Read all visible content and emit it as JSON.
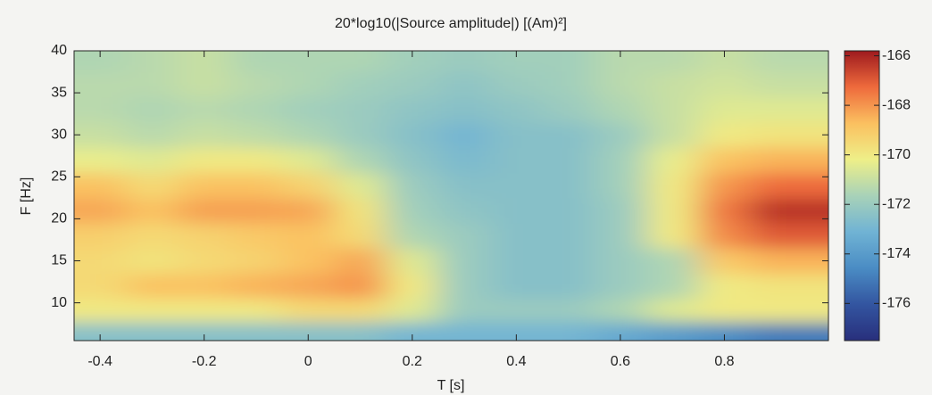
{
  "chart_data": {
    "type": "heatmap",
    "title": "20*log10(|Source amplitude|) [(Am)²]",
    "x_label": "T [s]",
    "y_label": "F [Hz]",
    "x": [
      -0.4,
      -0.3,
      -0.2,
      -0.1,
      0,
      0.1,
      0.2,
      0.3,
      0.4,
      0.5,
      0.6,
      0.7,
      0.8,
      0.9
    ],
    "y": [
      6.5,
      9,
      12,
      15,
      18,
      21,
      24,
      27,
      30,
      33,
      36,
      39
    ],
    "z": [
      [
        -172.5,
        -172.5,
        -172.5,
        -172.5,
        -172.5,
        -172.5,
        -173,
        -173,
        -173,
        -173,
        -173.5,
        -174,
        -174.5,
        -175
      ],
      [
        -170,
        -170,
        -170,
        -170,
        -169.5,
        -169.5,
        -170.5,
        -172,
        -172,
        -172,
        -171.5,
        -170.5,
        -170,
        -170
      ],
      [
        -169.5,
        -168.8,
        -168.8,
        -168.5,
        -168.3,
        -168,
        -170,
        -172,
        -172.5,
        -172.5,
        -172,
        -171.5,
        -170,
        -169.8
      ],
      [
        -169.5,
        -169.8,
        -169.5,
        -169.3,
        -168.8,
        -168.3,
        -170.5,
        -172,
        -172.5,
        -172.5,
        -172,
        -171.5,
        -169,
        -168.5
      ],
      [
        -169.2,
        -169.5,
        -169.3,
        -169,
        -168.8,
        -169.5,
        -171.5,
        -172,
        -172.5,
        -172.5,
        -172,
        -170,
        -167.8,
        -167
      ],
      [
        -168.3,
        -168.8,
        -168.2,
        -168.2,
        -168.3,
        -169.8,
        -171.8,
        -172.3,
        -172.5,
        -172.5,
        -172,
        -170,
        -167.5,
        -166.3
      ],
      [
        -168.8,
        -169.5,
        -168.8,
        -168.8,
        -169.3,
        -170.5,
        -172,
        -172.5,
        -172.5,
        -172.5,
        -171.8,
        -170,
        -168,
        -167.3
      ],
      [
        -170.3,
        -170.5,
        -170,
        -170,
        -170.5,
        -171.5,
        -172.3,
        -172.8,
        -172.5,
        -172.5,
        -171.8,
        -170.3,
        -168.8,
        -168.5
      ],
      [
        -171,
        -171.3,
        -171,
        -171.2,
        -171.5,
        -172,
        -172.5,
        -173,
        -172.5,
        -172.5,
        -172,
        -171,
        -170,
        -169.8
      ],
      [
        -171.3,
        -171.5,
        -171.3,
        -171.5,
        -171.8,
        -172,
        -172.3,
        -172.5,
        -172.3,
        -172,
        -171.5,
        -171,
        -170.5,
        -170.5
      ],
      [
        -171.3,
        -171.3,
        -171,
        -171.3,
        -171.5,
        -171.8,
        -172,
        -172.3,
        -172,
        -171.8,
        -171.3,
        -171,
        -170.8,
        -171
      ],
      [
        -171.5,
        -171.3,
        -171,
        -171.5,
        -171.5,
        -171.5,
        -171.8,
        -172,
        -171.8,
        -171.8,
        -171.3,
        -171.3,
        -171,
        -171.3
      ]
    ],
    "xlim": [
      -0.45,
      1.0
    ],
    "ylim": [
      5.5,
      40
    ],
    "xticks": [
      -0.4,
      -0.2,
      0,
      0.2,
      0.4,
      0.6,
      0.8
    ],
    "yticks": [
      10,
      15,
      20,
      25,
      30,
      35,
      40
    ],
    "clim": [
      -177.5,
      -165.8
    ],
    "cticks": [
      -166,
      -168,
      -170,
      -172,
      -174,
      -176
    ],
    "colormap": [
      "#282f7c",
      "#3355a0",
      "#4a8cc4",
      "#70b3d4",
      "#a8d2b8",
      "#eeef88",
      "#fbc060",
      "#ee6a3c",
      "#9e1a1e"
    ]
  }
}
